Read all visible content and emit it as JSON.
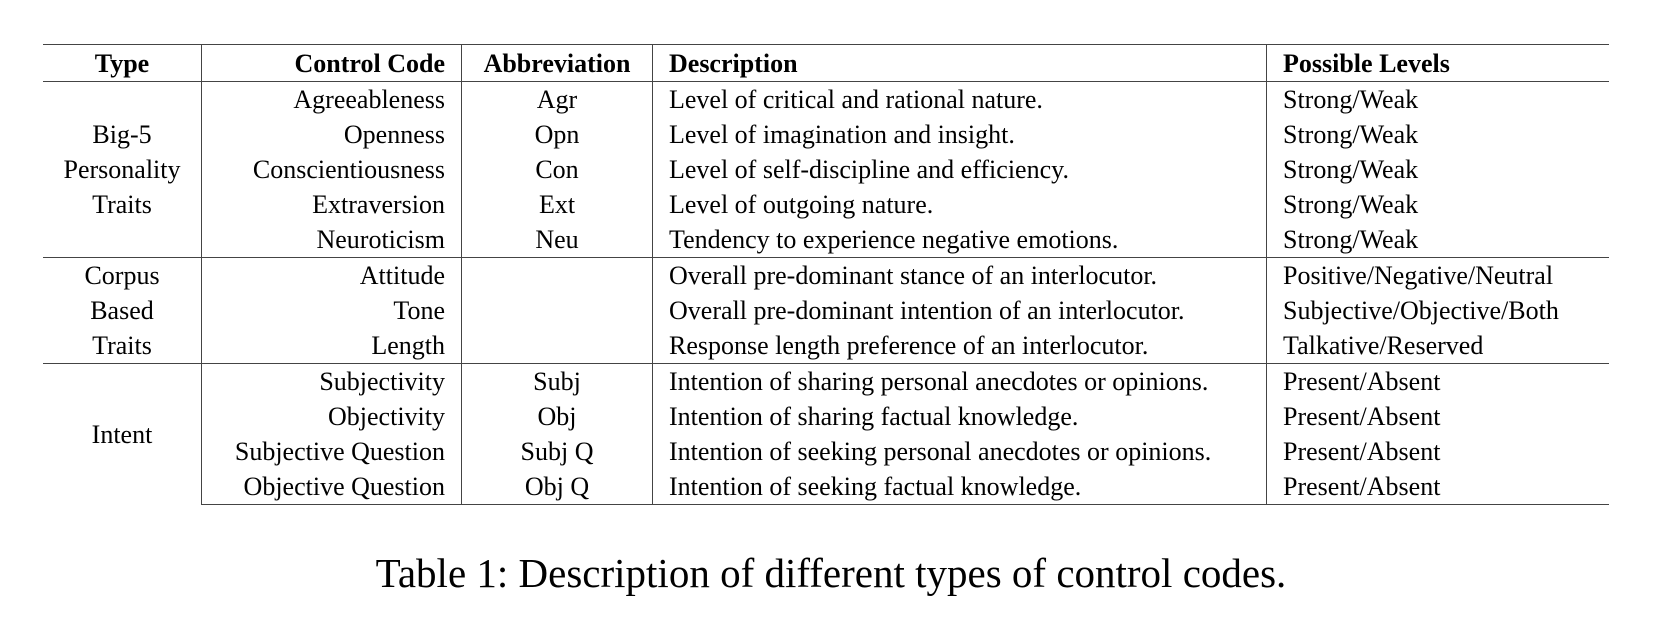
{
  "table": {
    "headers": [
      "Type",
      "Control Code",
      "Abbreviation",
      "Description",
      "Possible Levels"
    ],
    "groups": [
      {
        "type": "Big-5\nPersonality\nTraits",
        "rows": [
          {
            "code": "Agreeableness",
            "abbr": "Agr",
            "desc": "Level of critical and rational nature.",
            "levels": "Strong/Weak"
          },
          {
            "code": "Openness",
            "abbr": "Opn",
            "desc": "Level of imagination and insight.",
            "levels": "Strong/Weak"
          },
          {
            "code": "Conscientiousness",
            "abbr": "Con",
            "desc": "Level of self-discipline and efficiency.",
            "levels": "Strong/Weak"
          },
          {
            "code": "Extraversion",
            "abbr": "Ext",
            "desc": "Level of outgoing nature.",
            "levels": "Strong/Weak"
          },
          {
            "code": "Neuroticism",
            "abbr": "Neu",
            "desc": "Tendency to experience negative emotions.",
            "levels": "Strong/Weak"
          }
        ]
      },
      {
        "type": "Corpus\nBased\nTraits",
        "rows": [
          {
            "code": "Attitude",
            "abbr": "",
            "desc": "Overall pre-dominant stance of an interlocutor.",
            "levels": "Positive/Negative/Neutral"
          },
          {
            "code": "Tone",
            "abbr": "",
            "desc": "Overall pre-dominant intention of an interlocutor.",
            "levels": "Subjective/Objective/Both"
          },
          {
            "code": "Length",
            "abbr": "",
            "desc": "Response length preference of an interlocutor.",
            "levels": "Talkative/Reserved"
          }
        ]
      },
      {
        "type": "Intent",
        "rows": [
          {
            "code": "Subjectivity",
            "abbr": "Subj",
            "desc": "Intention of sharing personal anecdotes or opinions.",
            "levels": "Present/Absent"
          },
          {
            "code": "Objectivity",
            "abbr": "Obj",
            "desc": "Intention of sharing factual knowledge.",
            "levels": "Present/Absent"
          },
          {
            "code": "Subjective Question",
            "abbr": "Subj Q",
            "desc": "Intention of seeking personal anecdotes or opinions.",
            "levels": "Present/Absent"
          },
          {
            "code": "Objective Question",
            "abbr": "Obj Q",
            "desc": "Intention of seeking factual knowledge.",
            "levels": "Present/Absent"
          }
        ]
      }
    ]
  },
  "caption": "Table 1: Description of different types of control codes."
}
